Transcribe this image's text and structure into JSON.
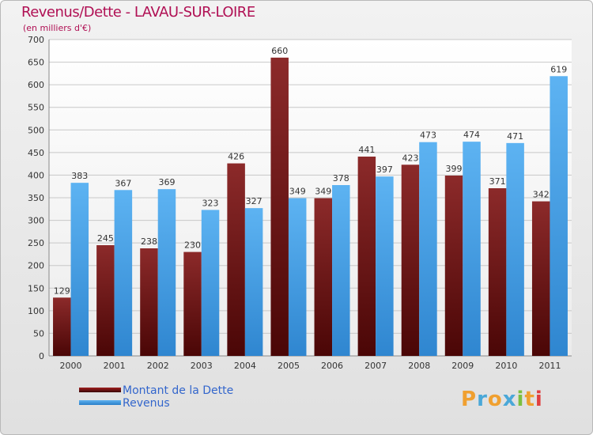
{
  "chart_data": {
    "type": "bar",
    "title": "Revenus/Dette - LAVAU-SUR-LOIRE",
    "subtitle": "(en milliers d'€)",
    "categories": [
      "2000",
      "2001",
      "2002",
      "2003",
      "2004",
      "2005",
      "2006",
      "2007",
      "2008",
      "2009",
      "2010",
      "2011"
    ],
    "series": [
      {
        "name": "Montant de la Dette",
        "values": [
          129,
          245,
          238,
          230,
          426,
          660,
          349,
          441,
          423,
          399,
          371,
          342
        ],
        "color": "#7a1a1a"
      },
      {
        "name": "Revenus",
        "values": [
          383,
          367,
          369,
          323,
          327,
          349,
          378,
          397,
          473,
          474,
          471,
          619
        ],
        "color": "#4fa3e8"
      }
    ],
    "ylim": [
      0,
      700
    ],
    "yticks": [
      0,
      50,
      100,
      150,
      200,
      250,
      300,
      350,
      400,
      450,
      500,
      550,
      600,
      650,
      700
    ],
    "grid": true,
    "legend": "bottom-left"
  },
  "logo": {
    "text": "Proxiti",
    "letters": [
      {
        "ch": "P",
        "color": "#f0a030"
      },
      {
        "ch": "r",
        "color": "#4aa8d8"
      },
      {
        "ch": "o",
        "color": "#f0a030"
      },
      {
        "ch": "x",
        "color": "#4aa8d8"
      },
      {
        "ch": "i",
        "color": "#7cc040"
      },
      {
        "ch": "t",
        "color": "#f0a030"
      },
      {
        "ch": "i",
        "color": "#e04040"
      }
    ]
  }
}
